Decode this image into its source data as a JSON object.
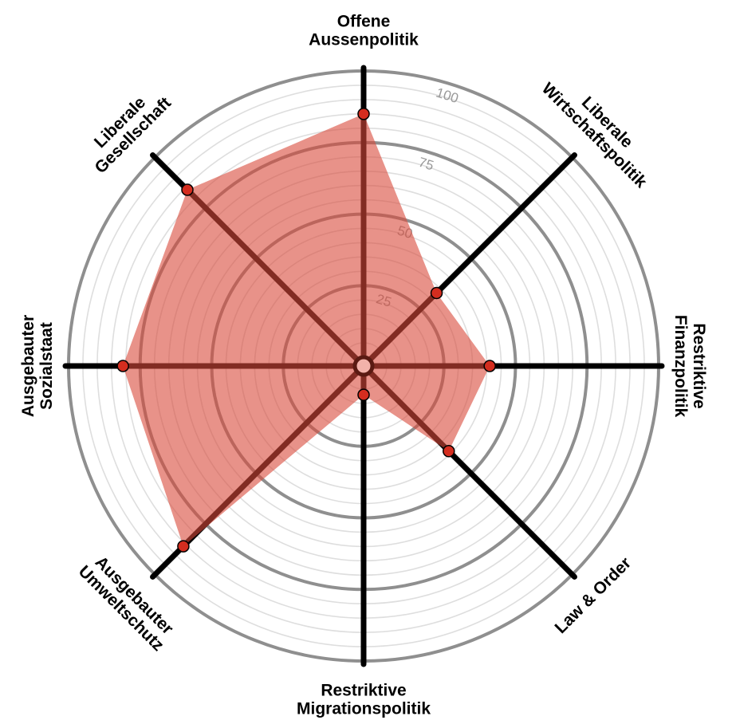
{
  "chart_data": {
    "type": "radar",
    "title": "",
    "axes": [
      {
        "label": [
          "Offene",
          "Aussenpolitik"
        ],
        "value": 85
      },
      {
        "label": [
          "Liberale",
          "Wirtschaftspolitik"
        ],
        "value": 33
      },
      {
        "label": [
          "Restriktive",
          "Finanzpolitik"
        ],
        "value": 41
      },
      {
        "label": [
          "Law & Order"
        ],
        "value": 39
      },
      {
        "label": [
          "Restriktive",
          "Migrationspolitik"
        ],
        "value": 7
      },
      {
        "label": [
          "Ausgebauter",
          "Umweltschutz"
        ],
        "value": 86
      },
      {
        "label": [
          "Ausgebauter",
          "Sozialstaat"
        ],
        "value": 81
      },
      {
        "label": [
          "Liberale",
          "Gesellschaft"
        ],
        "value": 84
      }
    ],
    "rlim": [
      0,
      100
    ],
    "ring_labels": [
      "25",
      "50",
      "75",
      "100"
    ],
    "fill_color": "#d9493a",
    "point_color": "#d42d1f",
    "axis_color": "#000000"
  }
}
